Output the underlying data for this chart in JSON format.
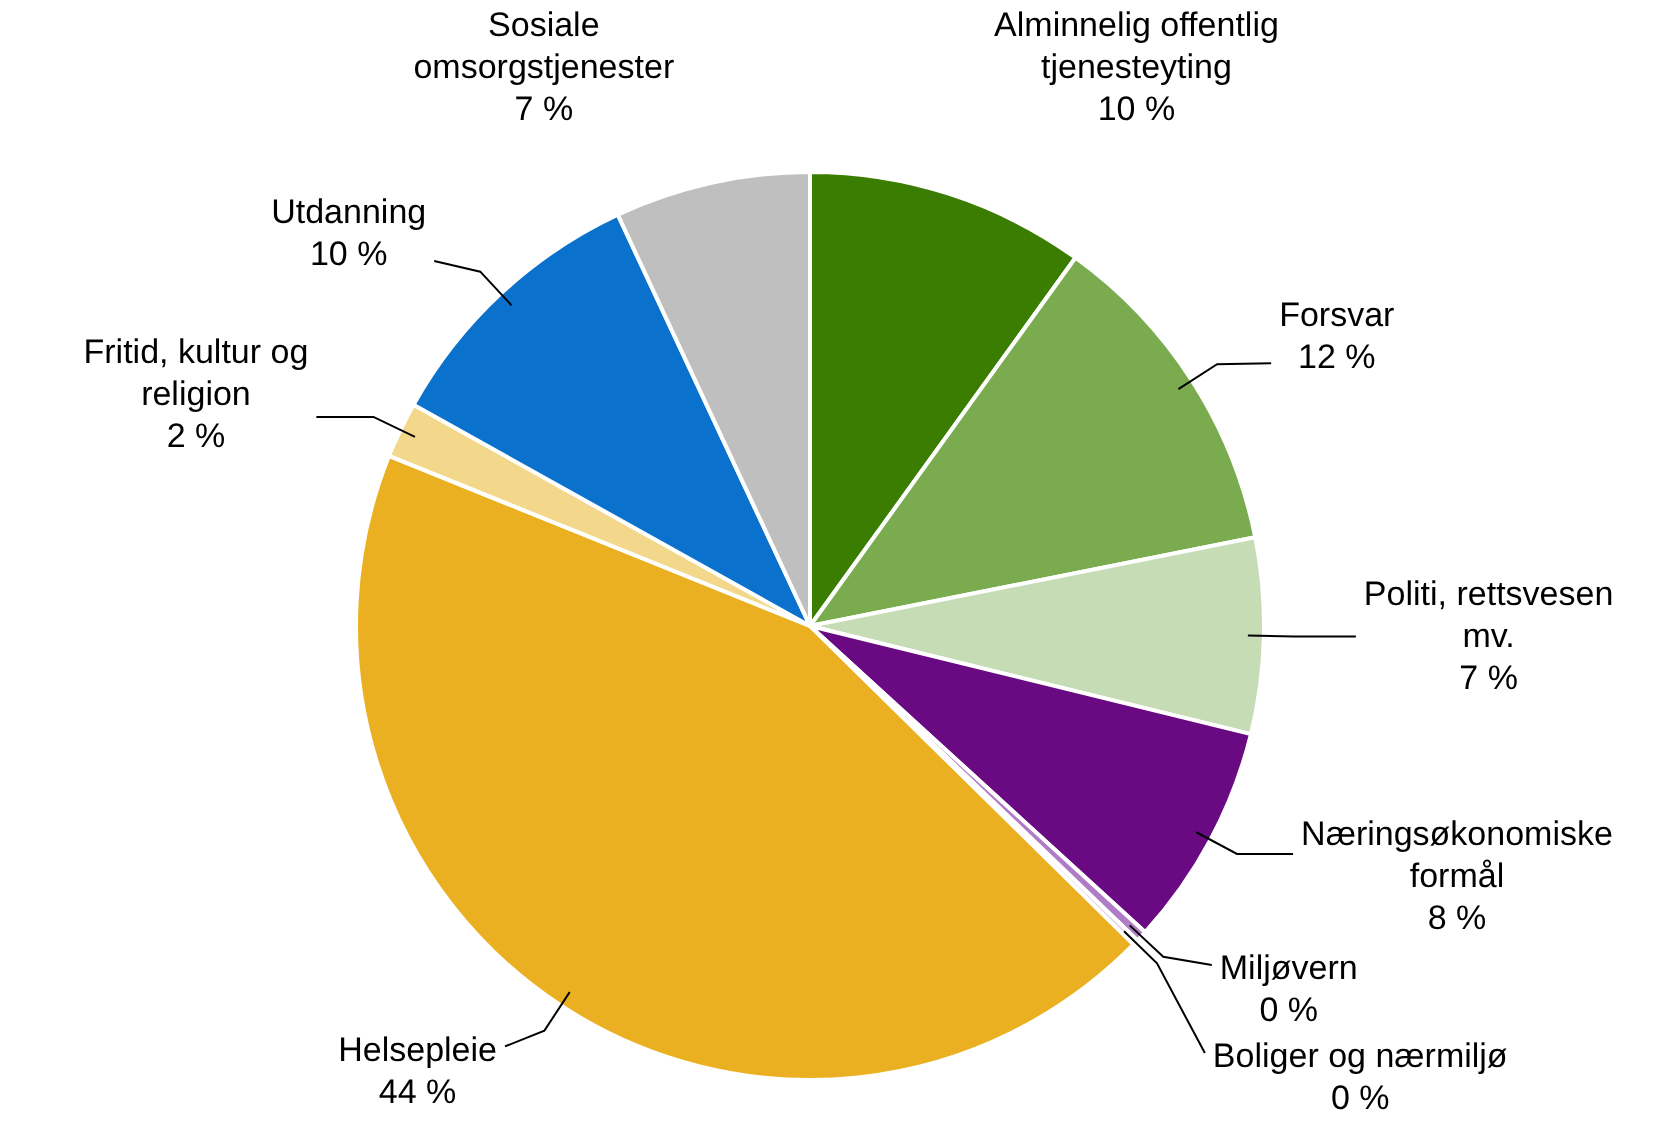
{
  "chart_data": {
    "type": "pie",
    "categories": [
      "Alminnelig offentlig tjenesteyting",
      "Forsvar",
      "Politi, rettsvesen mv.",
      "Næringsøkonomiske formål",
      "Miljøvern",
      "Boliger og nærmiljø",
      "Helsepleie",
      "Fritid, kultur og religion",
      "Utdanning",
      "Sosiale omsorgstjenester"
    ],
    "values": [
      10,
      12,
      7,
      8,
      0.4,
      0.2,
      44,
      2,
      10,
      7
    ],
    "value_labels": [
      "10 %",
      "12 %",
      "7 %",
      "8 %",
      "0 %",
      "0 %",
      "44 %",
      "2 %",
      "10 %",
      "7 %"
    ],
    "colors": [
      "#3a7d00",
      "#7aab4e",
      "#c5dcb5",
      "#6a0a82",
      "#b07cc6",
      "#dcc6ea",
      "#ebb021",
      "#f3d78a",
      "#0a72cc",
      "#bfbfbf"
    ],
    "legend": false
  }
}
